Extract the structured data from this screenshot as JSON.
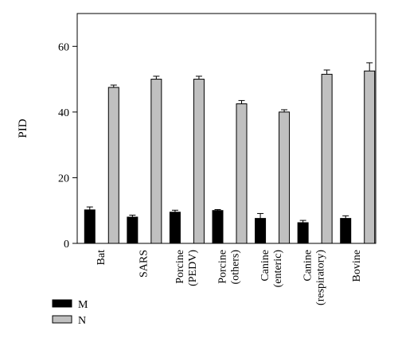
{
  "chart_data": {
    "type": "bar",
    "ylabel": "PID",
    "ylim": [
      0,
      70
    ],
    "yticks": [
      0,
      20,
      40,
      60
    ],
    "grid": false,
    "legend_position": "bottom-left",
    "categories": [
      [
        "Bat"
      ],
      [
        "SARS"
      ],
      [
        "Porcine",
        "(PEDV)"
      ],
      [
        "Porcine",
        "(others)"
      ],
      [
        "Canine",
        "(enteric)"
      ],
      [
        "Canine",
        "(respiratory)"
      ],
      [
        "Bovine"
      ]
    ],
    "series": [
      {
        "name": "M",
        "color": "#000000",
        "values": [
          10.2,
          8.0,
          9.5,
          10.0,
          7.6,
          6.3,
          7.6
        ],
        "errors": [
          0.9,
          0.6,
          0.6,
          0.3,
          1.5,
          0.7,
          0.8
        ]
      },
      {
        "name": "N",
        "color": "#c0c0c0",
        "values": [
          47.5,
          50.0,
          50.0,
          42.5,
          40.0,
          51.5,
          52.5
        ],
        "errors": [
          0.7,
          0.9,
          0.9,
          1.0,
          0.7,
          1.3,
          2.5
        ]
      }
    ]
  }
}
